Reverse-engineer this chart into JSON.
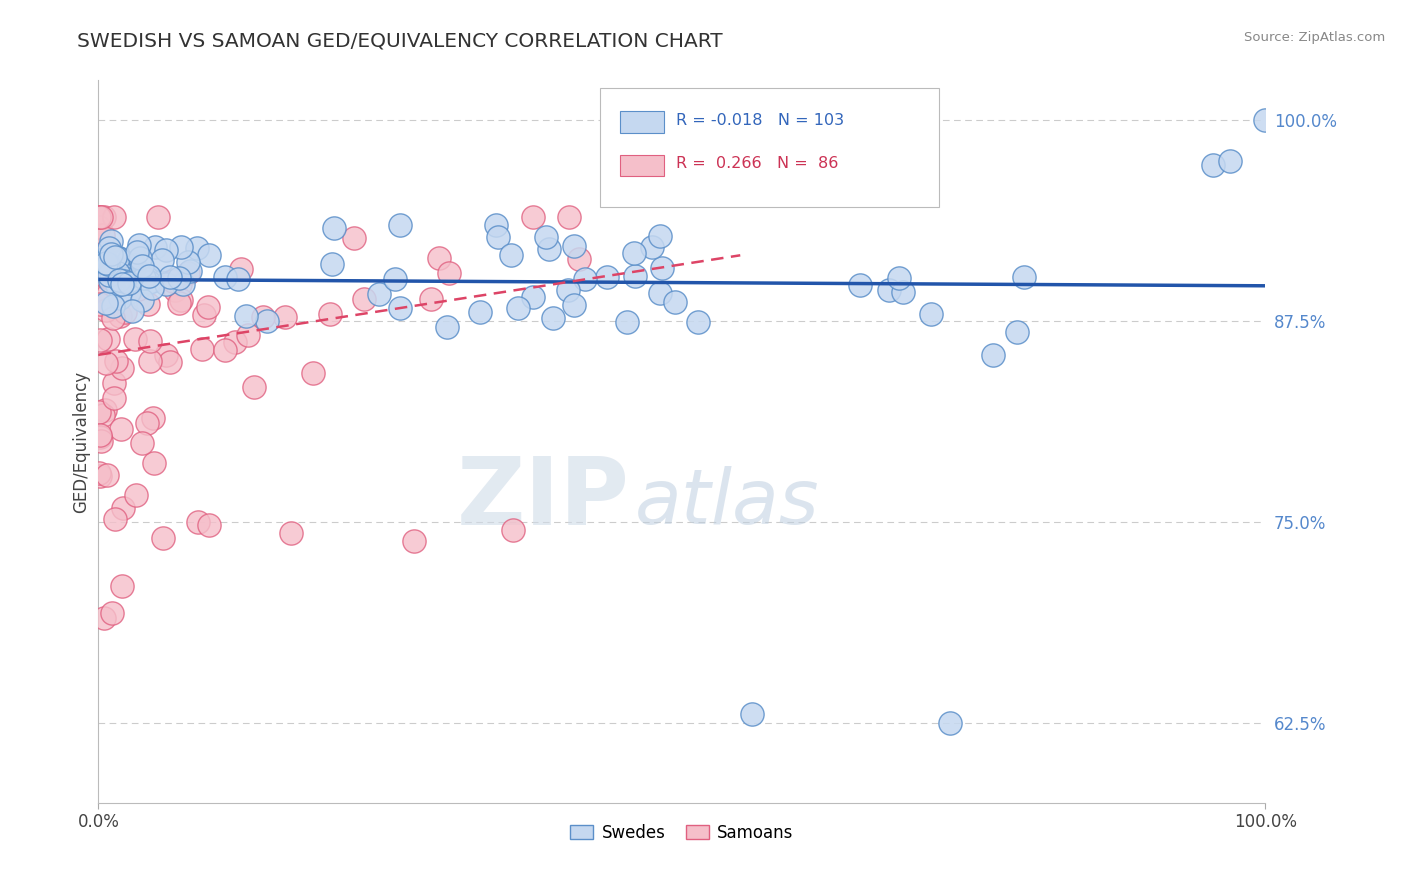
{
  "title": "SWEDISH VS SAMOAN GED/EQUIVALENCY CORRELATION CHART",
  "source": "Source: ZipAtlas.com",
  "ylabel": "GED/Equivalency",
  "yticks": [
    0.625,
    0.75,
    0.875,
    1.0
  ],
  "ytick_labels": [
    "62.5%",
    "75.0%",
    "87.5%",
    "100.0%"
  ],
  "xtick_labels": [
    "0.0%",
    "100.0%"
  ],
  "xlim": [
    0.0,
    1.0
  ],
  "ylim": [
    0.575,
    1.025
  ],
  "legend_swedes": "Swedes",
  "legend_samoans": "Samoans",
  "r_swedes": "-0.018",
  "n_swedes": "103",
  "r_samoans": "0.266",
  "n_samoans": "86",
  "blue_fill": "#C5D8F0",
  "blue_edge": "#5B8FC9",
  "pink_fill": "#F5BFCA",
  "pink_edge": "#E06080",
  "trend_blue": "#2255AA",
  "trend_pink": "#DD4466",
  "watermark_zip": "ZIP",
  "watermark_atlas": "atlas",
  "bg_color": "#FFFFFF",
  "grid_color": "#CCCCCC",
  "title_color": "#333333",
  "source_color": "#888888",
  "ytick_color": "#5588CC",
  "legend_box_edge": "#BBBBBB"
}
